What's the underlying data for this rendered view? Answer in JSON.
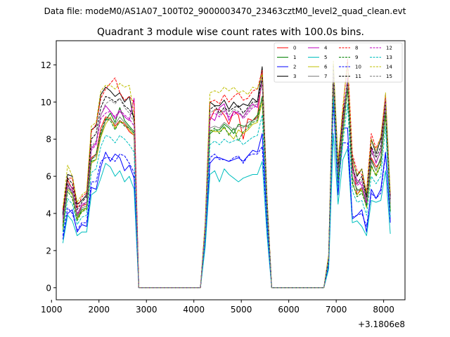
{
  "chart_data": {
    "type": "line",
    "suptitle": "Data file: modeM0/AS1A07_100T02_9000003470_23463cztM0_level2_quad_clean.evt",
    "title": "Quadrant 3 module wise count rates with 100.0s bins.",
    "xlabel": "",
    "ylabel": "",
    "x_offset_label": "+3.1806e8",
    "xlim": [
      1100,
      8450
    ],
    "ylim": [
      -0.65,
      13.3
    ],
    "xticks": [
      1000,
      2000,
      3000,
      4000,
      5000,
      6000,
      7000,
      8000
    ],
    "xtick_labels": [
      "1000",
      "2000",
      "3000",
      "4000",
      "5000",
      "6000",
      "7000",
      "8000"
    ],
    "yticks": [
      0,
      2,
      4,
      6,
      8,
      10,
      12
    ],
    "ytick_labels": [
      "0",
      "2",
      "4",
      "6",
      "8",
      "10",
      "12"
    ],
    "legend_location": "top-right",
    "legend_columns": 4,
    "x": [
      1240,
      1340,
      1440,
      1540,
      1640,
      1740,
      1840,
      1940,
      2040,
      2140,
      2240,
      2340,
      2440,
      2540,
      2640,
      2740,
      2840,
      2940,
      3040,
      3140,
      3240,
      3340,
      3440,
      3540,
      3640,
      3740,
      3840,
      3940,
      4040,
      4140,
      4240,
      4340,
      4440,
      4540,
      4640,
      4740,
      4840,
      4940,
      5040,
      5140,
      5240,
      5340,
      5440,
      5540,
      5640,
      5740,
      5840,
      5940,
      6040,
      6140,
      6240,
      6340,
      6440,
      6540,
      6640,
      6740,
      6840,
      6940,
      7040,
      7140,
      7240,
      7340,
      7440,
      7540,
      7640,
      7740,
      7840,
      7940,
      8040,
      8140
    ],
    "series": [
      {
        "name": "0",
        "color": "#ff0000",
        "dash": "solid",
        "values": [
          3.5,
          5.8,
          5.3,
          3.8,
          4.4,
          4.5,
          7.0,
          7.2,
          8.6,
          9.2,
          9.1,
          8.7,
          9.0,
          8.8,
          8.4,
          8.2,
          0,
          0,
          0,
          0,
          0,
          0,
          0,
          0,
          0,
          0,
          0,
          0,
          0,
          0,
          3.2,
          9.0,
          9.6,
          9.6,
          9.3,
          8.8,
          9.5,
          9.3,
          8.0,
          9.1,
          9.0,
          9.2,
          11.4,
          4.5,
          0,
          0,
          0,
          0,
          0,
          0,
          0,
          0,
          0,
          0,
          0,
          0,
          1.6,
          10.9,
          5.6,
          8.6,
          11.3,
          6.8,
          5.0,
          5.4,
          4.6,
          7.0,
          6.5,
          6.8,
          10.0,
          4.3
        ]
      },
      {
        "name": "1",
        "color": "#008000",
        "dash": "solid",
        "values": [
          3.0,
          5.6,
          5.0,
          3.7,
          4.2,
          4.3,
          6.8,
          6.9,
          8.2,
          9.0,
          9.4,
          8.9,
          9.7,
          9.0,
          8.7,
          8.4,
          0,
          0,
          0,
          0,
          0,
          0,
          0,
          0,
          0,
          0,
          0,
          0,
          0,
          0,
          3.1,
          8.3,
          8.5,
          8.5,
          8.8,
          8.6,
          8.3,
          8.8,
          8.7,
          8.7,
          9.0,
          9.3,
          10.2,
          4.4,
          0,
          0,
          0,
          0,
          0,
          0,
          0,
          0,
          0,
          0,
          0,
          0,
          1.5,
          11.4,
          5.9,
          8.4,
          10.9,
          5.9,
          5.3,
          5.2,
          4.7,
          6.9,
          6.3,
          7.0,
          9.5,
          4.2
        ]
      },
      {
        "name": "2",
        "color": "#0000ff",
        "dash": "solid",
        "values": [
          2.6,
          4.0,
          4.2,
          3.0,
          3.4,
          3.3,
          5.4,
          5.3,
          6.5,
          7.3,
          6.8,
          7.2,
          7.0,
          6.3,
          6.6,
          5.9,
          0,
          0,
          0,
          0,
          0,
          0,
          0,
          0,
          0,
          0,
          0,
          0,
          0,
          0,
          2.6,
          6.7,
          7.0,
          7.0,
          6.9,
          6.8,
          6.9,
          7.0,
          6.8,
          7.1,
          7.4,
          7.3,
          8.3,
          3.6,
          0,
          0,
          0,
          0,
          0,
          0,
          0,
          0,
          0,
          0,
          0,
          0,
          1.2,
          10.2,
          5.0,
          8.6,
          8.6,
          3.7,
          3.9,
          4.2,
          3.0,
          5.3,
          4.8,
          5.3,
          7.3,
          3.6
        ]
      },
      {
        "name": "3",
        "color": "#000000",
        "dash": "solid",
        "values": [
          4.0,
          6.1,
          6.0,
          4.5,
          4.7,
          5.0,
          8.5,
          8.7,
          10.4,
          10.8,
          10.6,
          10.3,
          10.5,
          10.0,
          10.3,
          9.0,
          0,
          0,
          0,
          0,
          0,
          0,
          0,
          0,
          0,
          0,
          0,
          0,
          0,
          0,
          3.5,
          10.0,
          9.8,
          9.8,
          10.1,
          9.6,
          10.0,
          9.7,
          9.9,
          9.8,
          10.2,
          10.0,
          11.9,
          4.9,
          0,
          0,
          0,
          0,
          0,
          0,
          0,
          0,
          0,
          0,
          0,
          0,
          1.7,
          11.5,
          6.5,
          9.3,
          11.0,
          7.0,
          6.0,
          6.4,
          4.9,
          8.0,
          7.2,
          8.0,
          10.1,
          4.9
        ]
      },
      {
        "name": "4",
        "color": "#bf00bf",
        "dash": "solid",
        "values": [
          3.8,
          5.5,
          5.2,
          3.9,
          4.5,
          4.6,
          7.5,
          7.8,
          9.3,
          9.8,
          9.5,
          9.1,
          9.5,
          9.2,
          9.0,
          10.2,
          0,
          0,
          0,
          0,
          0,
          0,
          0,
          0,
          0,
          0,
          0,
          0,
          0,
          0,
          3.3,
          9.2,
          9.0,
          9.7,
          9.9,
          9.0,
          9.5,
          9.4,
          9.2,
          9.6,
          9.9,
          9.7,
          11.3,
          4.6,
          0,
          0,
          0,
          0,
          0,
          0,
          0,
          0,
          0,
          0,
          0,
          0,
          1.6,
          10.9,
          6.1,
          9.0,
          11.0,
          6.4,
          5.8,
          5.5,
          4.5,
          7.5,
          6.7,
          7.4,
          10.4,
          4.7
        ]
      },
      {
        "name": "5",
        "color": "#00bfbf",
        "dash": "solid",
        "values": [
          2.4,
          3.9,
          3.6,
          2.8,
          3.0,
          3.0,
          5.0,
          5.2,
          5.9,
          6.7,
          6.5,
          6.0,
          6.3,
          5.7,
          6.0,
          5.3,
          0,
          0,
          0,
          0,
          0,
          0,
          0,
          0,
          0,
          0,
          0,
          0,
          0,
          0,
          2.2,
          6.1,
          6.3,
          5.7,
          6.4,
          6.1,
          5.9,
          5.7,
          5.9,
          6.0,
          6.1,
          6.1,
          6.8,
          2.9,
          0,
          0,
          0,
          0,
          0,
          0,
          0,
          0,
          0,
          0,
          0,
          0,
          1.0,
          8.3,
          4.5,
          6.9,
          7.5,
          3.5,
          3.6,
          3.3,
          2.8,
          4.7,
          4.6,
          4.7,
          6.3,
          2.9
        ]
      },
      {
        "name": "6",
        "color": "#bfbf00",
        "dash": "solid",
        "values": [
          3.2,
          5.3,
          5.0,
          3.7,
          4.1,
          4.3,
          6.7,
          6.9,
          8.1,
          8.8,
          9.2,
          8.6,
          8.9,
          8.9,
          8.5,
          8.2,
          0,
          0,
          0,
          0,
          0,
          0,
          0,
          0,
          0,
          0,
          0,
          0,
          0,
          0,
          2.9,
          8.5,
          8.4,
          8.4,
          8.6,
          8.3,
          8.0,
          8.5,
          8.3,
          8.5,
          8.8,
          8.9,
          10.0,
          4.3,
          0,
          0,
          0,
          0,
          0,
          0,
          0,
          0,
          0,
          0,
          0,
          0,
          1.5,
          11.0,
          5.8,
          8.2,
          10.8,
          5.6,
          5.0,
          5.3,
          4.3,
          6.5,
          6.1,
          6.7,
          9.3,
          4.1
        ]
      },
      {
        "name": "7",
        "color": "#808080",
        "dash": "solid",
        "values": [
          3.4,
          5.4,
          5.1,
          3.8,
          4.3,
          4.4,
          6.9,
          7.1,
          8.3,
          9.0,
          9.1,
          8.8,
          9.2,
          8.9,
          8.6,
          8.3,
          0,
          0,
          0,
          0,
          0,
          0,
          0,
          0,
          0,
          0,
          0,
          0,
          0,
          0,
          3.0,
          8.6,
          8.7,
          8.6,
          8.9,
          8.7,
          8.5,
          8.7,
          8.6,
          8.9,
          9.0,
          9.1,
          10.3,
          4.4,
          0,
          0,
          0,
          0,
          0,
          0,
          0,
          0,
          0,
          0,
          0,
          0,
          1.5,
          11.1,
          5.9,
          8.5,
          10.9,
          6.0,
          5.2,
          5.4,
          4.4,
          6.8,
          6.3,
          6.9,
          9.5,
          4.3
        ]
      },
      {
        "name": "8",
        "color": "#ff0000",
        "dash": "dashed",
        "values": [
          4.2,
          5.9,
          5.9,
          4.3,
          4.9,
          5.1,
          8.4,
          8.8,
          10.2,
          10.7,
          11.0,
          11.3,
          10.5,
          10.1,
          10.3,
          10.0,
          0,
          0,
          0,
          0,
          0,
          0,
          0,
          0,
          0,
          0,
          0,
          0,
          0,
          0,
          3.4,
          10.0,
          10.1,
          9.9,
          10.4,
          10.0,
          10.3,
          10.5,
          10.1,
          10.2,
          10.6,
          10.7,
          11.7,
          4.9,
          0,
          0,
          0,
          0,
          0,
          0,
          0,
          0,
          0,
          0,
          0,
          0,
          1.7,
          11.8,
          6.7,
          9.5,
          12.3,
          7.2,
          6.3,
          6.1,
          5.2,
          8.3,
          7.5,
          8.1,
          10.3,
          5.0
        ]
      },
      {
        "name": "9",
        "color": "#008000",
        "dash": "dashed",
        "values": [
          3.3,
          5.2,
          4.8,
          3.6,
          4.1,
          4.2,
          6.9,
          7.2,
          8.4,
          9.1,
          9.0,
          8.5,
          9.0,
          8.7,
          8.6,
          8.3,
          0,
          0,
          0,
          0,
          0,
          0,
          0,
          0,
          0,
          0,
          0,
          0,
          0,
          0,
          2.9,
          8.4,
          8.6,
          8.3,
          8.7,
          8.2,
          8.6,
          7.9,
          8.4,
          8.6,
          8.9,
          9.0,
          10.3,
          4.3,
          0,
          0,
          0,
          0,
          0,
          0,
          0,
          0,
          0,
          0,
          0,
          0,
          1.4,
          11.2,
          5.8,
          8.3,
          10.7,
          5.7,
          4.9,
          5.1,
          4.4,
          6.6,
          6.0,
          6.6,
          9.4,
          4.1
        ]
      },
      {
        "name": "10",
        "color": "#0000ff",
        "dash": "dashed",
        "values": [
          2.8,
          4.3,
          4.0,
          3.1,
          3.5,
          3.5,
          5.7,
          5.7,
          6.8,
          7.0,
          7.0,
          6.8,
          7.2,
          7.1,
          6.7,
          6.2,
          0,
          0,
          0,
          0,
          0,
          0,
          0,
          0,
          0,
          0,
          0,
          0,
          0,
          0,
          2.6,
          7.0,
          7.2,
          6.9,
          6.9,
          6.8,
          7.0,
          7.1,
          6.7,
          7.1,
          7.2,
          7.2,
          7.6,
          3.4,
          0,
          0,
          0,
          0,
          0,
          0,
          0,
          0,
          0,
          0,
          0,
          0,
          1.2,
          9.9,
          5.4,
          7.8,
          7.8,
          3.8,
          3.9,
          4.0,
          3.3,
          5.1,
          4.8,
          5.1,
          7.2,
          3.5
        ]
      },
      {
        "name": "11",
        "color": "#000000",
        "dash": "dashed",
        "values": [
          3.9,
          5.9,
          5.6,
          4.2,
          4.6,
          4.9,
          8.0,
          8.3,
          9.7,
          10.3,
          10.2,
          10.0,
          10.2,
          9.8,
          9.6,
          9.2,
          0,
          0,
          0,
          0,
          0,
          0,
          0,
          0,
          0,
          0,
          0,
          0,
          0,
          0,
          3.3,
          9.6,
          9.8,
          9.4,
          9.7,
          9.5,
          9.7,
          9.8,
          9.4,
          9.7,
          10.0,
          10.0,
          11.3,
          4.8,
          0,
          0,
          0,
          0,
          0,
          0,
          0,
          0,
          0,
          0,
          0,
          0,
          1.6,
          12.0,
          6.4,
          9.1,
          11.2,
          6.6,
          5.6,
          6.0,
          4.8,
          7.6,
          7.0,
          7.6,
          10.0,
          4.8
        ]
      },
      {
        "name": "12",
        "color": "#bf00bf",
        "dash": "dashed",
        "values": [
          3.7,
          5.6,
          5.4,
          4.0,
          4.4,
          4.6,
          7.4,
          7.7,
          9.1,
          9.4,
          9.5,
          9.2,
          9.6,
          9.3,
          9.1,
          8.7,
          0,
          0,
          0,
          0,
          0,
          0,
          0,
          0,
          0,
          0,
          0,
          0,
          0,
          0,
          3.2,
          9.3,
          9.4,
          9.2,
          9.5,
          9.2,
          9.3,
          9.5,
          9.1,
          9.4,
          9.7,
          9.8,
          11.0,
          4.6,
          0,
          0,
          0,
          0,
          0,
          0,
          0,
          0,
          0,
          0,
          0,
          0,
          1.6,
          11.3,
          6.2,
          8.9,
          11.3,
          6.3,
          5.5,
          5.7,
          4.6,
          7.3,
          6.8,
          7.3,
          10.2,
          4.6
        ]
      },
      {
        "name": "13",
        "color": "#00bfbf",
        "dash": "dashed",
        "values": [
          3.0,
          4.8,
          4.5,
          3.4,
          3.8,
          3.9,
          6.2,
          6.4,
          7.6,
          8.2,
          8.1,
          7.8,
          8.2,
          8.0,
          7.7,
          7.3,
          0,
          0,
          0,
          0,
          0,
          0,
          0,
          0,
          0,
          0,
          0,
          0,
          0,
          0,
          2.8,
          7.7,
          7.9,
          7.7,
          8.0,
          7.8,
          7.9,
          8.0,
          7.7,
          7.9,
          8.1,
          8.2,
          9.3,
          3.9,
          0,
          0,
          0,
          0,
          0,
          0,
          0,
          0,
          0,
          0,
          0,
          0,
          1.3,
          10.3,
          5.4,
          7.8,
          9.9,
          5.2,
          4.6,
          4.7,
          3.9,
          6.0,
          5.6,
          6.0,
          8.7,
          3.8
        ]
      },
      {
        "name": "14",
        "color": "#bfbf00",
        "dash": "dashed",
        "values": [
          4.3,
          6.6,
          6.0,
          4.6,
          5.0,
          5.2,
          8.7,
          8.9,
          10.6,
          10.9,
          10.9,
          10.7,
          11.0,
          10.8,
          10.9,
          9.3,
          0,
          0,
          0,
          0,
          0,
          0,
          0,
          0,
          0,
          0,
          0,
          0,
          0,
          0,
          3.6,
          10.5,
          10.6,
          10.5,
          10.8,
          10.6,
          10.8,
          10.5,
          10.6,
          10.4,
          10.8,
          10.7,
          11.5,
          5.0,
          0,
          0,
          0,
          0,
          0,
          0,
          0,
          0,
          0,
          0,
          0,
          0,
          1.8,
          12.2,
          6.8,
          9.8,
          12.1,
          6.9,
          6.1,
          6.4,
          5.1,
          8.0,
          7.4,
          8.1,
          10.5,
          5.1
        ]
      },
      {
        "name": "15",
        "color": "#808080",
        "dash": "dashed",
        "values": [
          3.6,
          5.7,
          5.3,
          3.9,
          4.4,
          4.6,
          7.6,
          7.9,
          9.3,
          9.9,
          10.1,
          9.9,
          10.2,
          9.7,
          9.4,
          8.9,
          0,
          0,
          0,
          0,
          0,
          0,
          0,
          0,
          0,
          0,
          0,
          0,
          0,
          0,
          3.2,
          9.4,
          9.6,
          9.3,
          9.6,
          9.3,
          9.6,
          9.5,
          9.2,
          9.5,
          9.8,
          9.9,
          11.1,
          4.7,
          0,
          0,
          0,
          0,
          0,
          0,
          0,
          0,
          0,
          0,
          0,
          0,
          1.6,
          11.6,
          6.2,
          9.0,
          11.1,
          6.5,
          5.6,
          5.8,
          4.7,
          7.3,
          6.8,
          7.3,
          9.9,
          4.6
        ]
      }
    ]
  }
}
